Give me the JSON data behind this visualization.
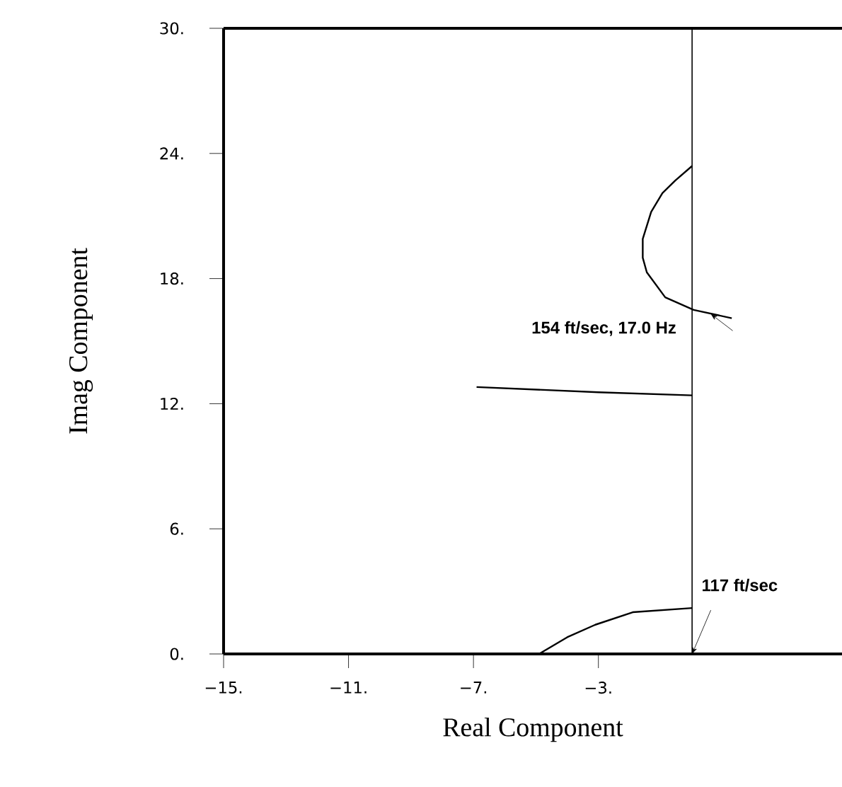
{
  "chart_data": {
    "type": "line",
    "xlabel": "Real Component",
    "ylabel": "Imag Component",
    "xlim": [
      -15,
      4.8
    ],
    "ylim": [
      0,
      30
    ],
    "xticks": [
      {
        "value": -15,
        "label": "−15."
      },
      {
        "value": -11,
        "label": "−11."
      },
      {
        "value": -7,
        "label": "−7."
      },
      {
        "value": -3,
        "label": "−3."
      }
    ],
    "yticks": [
      {
        "value": 0,
        "label": "0."
      },
      {
        "value": 6,
        "label": "6."
      },
      {
        "value": 12,
        "label": "12."
      },
      {
        "value": 18,
        "label": "18."
      },
      {
        "value": 24,
        "label": "24."
      },
      {
        "value": 30,
        "label": "30."
      }
    ],
    "series": [
      {
        "color": "#000000",
        "x": [
          0,
          -0.54,
          -0.95,
          -1.31,
          -1.58,
          -1.58,
          -1.45,
          -0.86,
          0.05,
          1.27
        ],
        "values": [
          23.4,
          22.7,
          22.1,
          21.2,
          19.9,
          19.0,
          18.3,
          17.1,
          16.5,
          16.1
        ]
      },
      {
        "color": "#000000",
        "x": [
          0,
          -3,
          -6.9
        ],
        "values": [
          12.4,
          12.55,
          12.8
        ]
      },
      {
        "color": "#000000",
        "x": [
          0,
          -1.9,
          -3.1,
          -4.0,
          -4.9
        ],
        "values": [
          2.2,
          2.0,
          1.4,
          0.8,
          0
        ]
      }
    ],
    "ref_lines": [
      {
        "axis": "x",
        "value": 0,
        "color": "#000000"
      }
    ],
    "annotations": [
      {
        "text": "154 ft/sec, 17.0 Hz",
        "x": 0.6,
        "y": 16.3
      },
      {
        "text": "117 ft/sec",
        "x": 0,
        "y": 0
      }
    ],
    "grid": false,
    "marker": "none",
    "line_style": "solid"
  }
}
